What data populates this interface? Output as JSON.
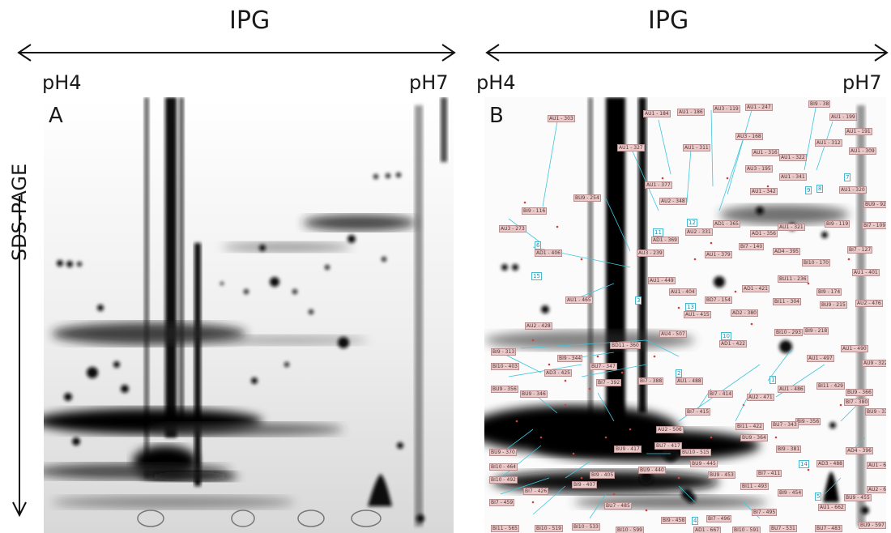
{
  "header": {
    "left_title": "IPG",
    "right_title": "IPG"
  },
  "axis": {
    "vertical_label": "SDS-PAGE",
    "left_min": "pH4",
    "left_max": "pH7",
    "right_min": "pH4",
    "right_max": "pH7"
  },
  "panels": {
    "a_letter": "A",
    "b_letter": "B"
  },
  "spot_labels": [
    "AU1 - 303",
    "AU1 - 184",
    "AU1 - 186",
    "AU3 - 119",
    "AU1 - 247",
    "BI9 - 38",
    "AU1 - 199",
    "AU1 - 191",
    "AU3 - 168",
    "AU1 - 312",
    "AU1 - 327",
    "AU1 - 311",
    "AU1 - 316",
    "AU1 - 322",
    "AU1 - 309",
    "AU3 - 195",
    "AU1 - 341",
    "AU1 - 377",
    "AU1 - 342",
    "AU1 - 320",
    "BU9 - 254",
    "AU2 - 348",
    "BI9 - 116",
    "BU9 - 92",
    "AD1 - 365",
    "AU1 - 321",
    "BI9 - 119",
    "AU2 - 331",
    "AD1 - 356",
    "BI7 - 109",
    "AU3 - 273",
    "AD1 - 369",
    "BI7 - 140",
    "AD4 - 395",
    "BI7 - 127",
    "AD1 - 406",
    "AU3 - 239",
    "AU1 - 379",
    "BI10 - 170",
    "AU1 - 449",
    "BU11 - 236",
    "AU1 - 401",
    "AD1 - 421",
    "AU1 - 404",
    "BD7 - 154",
    "BI9 - 174",
    "AU1 - 465",
    "BI11 - 304",
    "BU9 - 215",
    "AU2 - 476",
    "AU1 - 415",
    "AD2 - 380",
    "AU2 - 428",
    "BI9 - 218",
    "AU4 - 507",
    "BI10 - 293",
    "AD1 - 422",
    "BD11 - 360",
    "AU1 - 490",
    "AU1 - 497",
    "BI9 - 313",
    "BI9 - 344",
    "AU9 - 322",
    "BI10 - 403",
    "AD3 - 425",
    "BU7 - 347",
    "BI7 - 388",
    "AU1 - 488",
    "BI7 - 392",
    "AU1 - 486",
    "BI11 - 429",
    "BU9 - 356",
    "BU9 - 346",
    "BI7 - 414",
    "AU2 - 471",
    "BU9 - 366",
    "BI7 - 380",
    "BI7 - 415",
    "BU9 - 339",
    "BI9 - 356",
    "BI11 - 422",
    "BU7 - 343",
    "AU2 - 506",
    "BU9 - 364",
    "BU9 - 370",
    "BU7 - 417",
    "BU9 - 417",
    "BU10 - 515",
    "BI9 - 381",
    "AD4 - 396",
    "BI10 - 464",
    "BU9 - 445",
    "AD3 - 488",
    "BI10 - 492",
    "BU9 - 440",
    "BU9 - 453",
    "BI7 - 411",
    "AU1 - 657",
    "BI9 - 405",
    "BI9 - 407",
    "BI11 - 493",
    "AU2 - 664",
    "BI7 - 426",
    "BI9 - 454",
    "BU9 - 455",
    "BI7 - 459",
    "AU1 - 662",
    "BU7 - 485",
    "BI9 - 458",
    "BI7 - 495",
    "BI7 - 496",
    "BI11 - 565",
    "BI10 - 519",
    "BI10 - 533",
    "BI10 - 599",
    "AD1 - 667",
    "BI10 - 591",
    "BU7 - 531",
    "BU7 - 483",
    "BU9 - 597"
  ],
  "spot_numbers": [
    "9",
    "8",
    "7",
    "12",
    "11",
    "6",
    "15",
    "3",
    "13",
    "10",
    "2",
    "1",
    "14",
    "5",
    "4"
  ]
}
